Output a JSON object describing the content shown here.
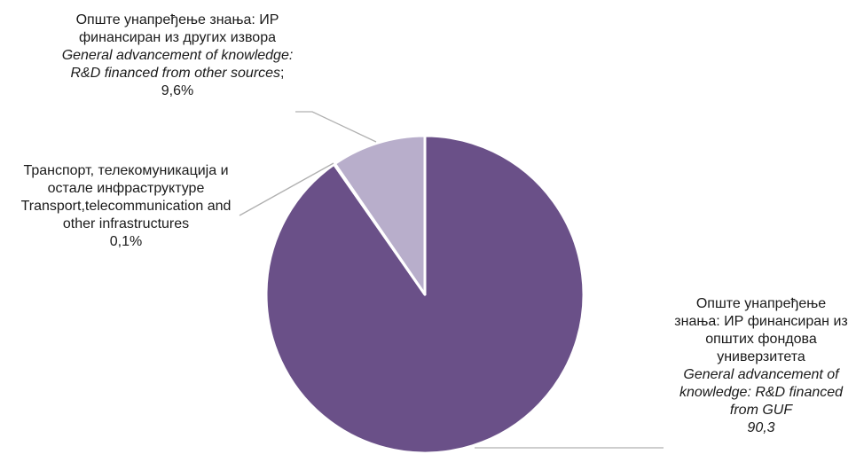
{
  "chart_data": {
    "type": "pie",
    "title": "",
    "colors": [
      "#6a5088",
      "#ffffff",
      "#b8aecb"
    ],
    "slices": [
      {
        "value": 90.3,
        "label_sr": [
          "Опште унапређење",
          "знања: ИР финансиран из",
          "општих фондова",
          "универзитета"
        ],
        "label_en": [
          "General advancement of",
          "knowledge: R&D financed",
          "from GUF"
        ],
        "value_text": "90,3"
      },
      {
        "value": 0.1,
        "label_sr": [
          "Транспорт, телекомуникација и",
          "остале инфраструктуре"
        ],
        "label_en": [
          "Transport,telecommunication and",
          "other infrastructures"
        ],
        "value_text": "0,1%"
      },
      {
        "value": 9.6,
        "label_sr": [
          "Опште унапређење знања: ИР",
          "финансиран из других извора"
        ],
        "label_en": [
          "General advancement of knowledge:",
          "R&D financed from other sources"
        ],
        "en_suffix": ";",
        "value_text": "9,6%"
      }
    ]
  }
}
